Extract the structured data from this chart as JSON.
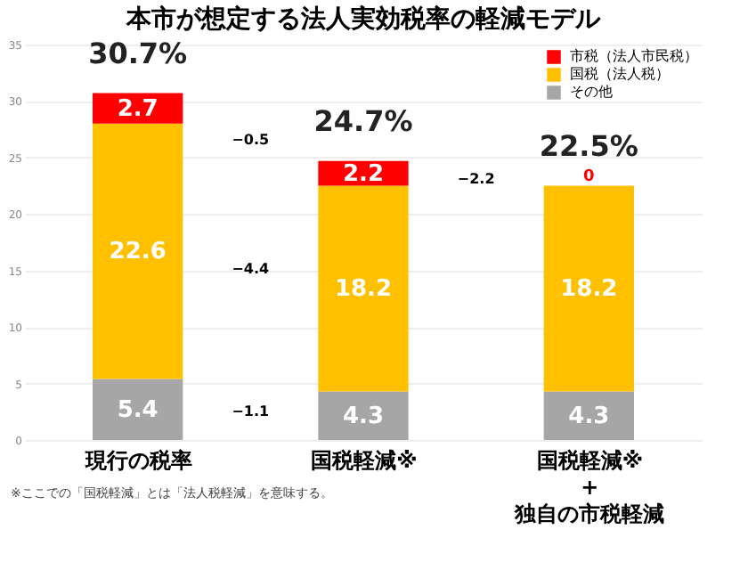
{
  "chart_data": {
    "type": "bar",
    "title": "本市が想定する法人実効税率の軽減モデル",
    "categories": [
      "現行の税率",
      "国税軽減※",
      "国税軽減※\n+\n独自の市税軽減"
    ],
    "stacked": true,
    "series": [
      {
        "name": "その他",
        "color": "#a6a6a6",
        "values": [
          5.4,
          4.3,
          4.3
        ]
      },
      {
        "name": "国税（法人税）",
        "color": "#ffc000",
        "values": [
          22.6,
          18.2,
          18.2
        ]
      },
      {
        "name": "市税（法人市民税）",
        "color": "#ff0000",
        "values": [
          2.7,
          2.2,
          0
        ]
      }
    ],
    "data_labels": true,
    "totals": [
      "30.7%",
      "24.7%",
      "22.5%"
    ],
    "ylim": [
      0,
      35
    ],
    "yticks": [
      0,
      5,
      10,
      15,
      20,
      25,
      30,
      35
    ],
    "grid": "y",
    "legend": "top right",
    "annotations": [
      "−0.5",
      "−4.4",
      "−1.1",
      "−2.2",
      "※ここでの「国税軽減」とは「法人税軽減」を意味する。"
    ]
  }
}
